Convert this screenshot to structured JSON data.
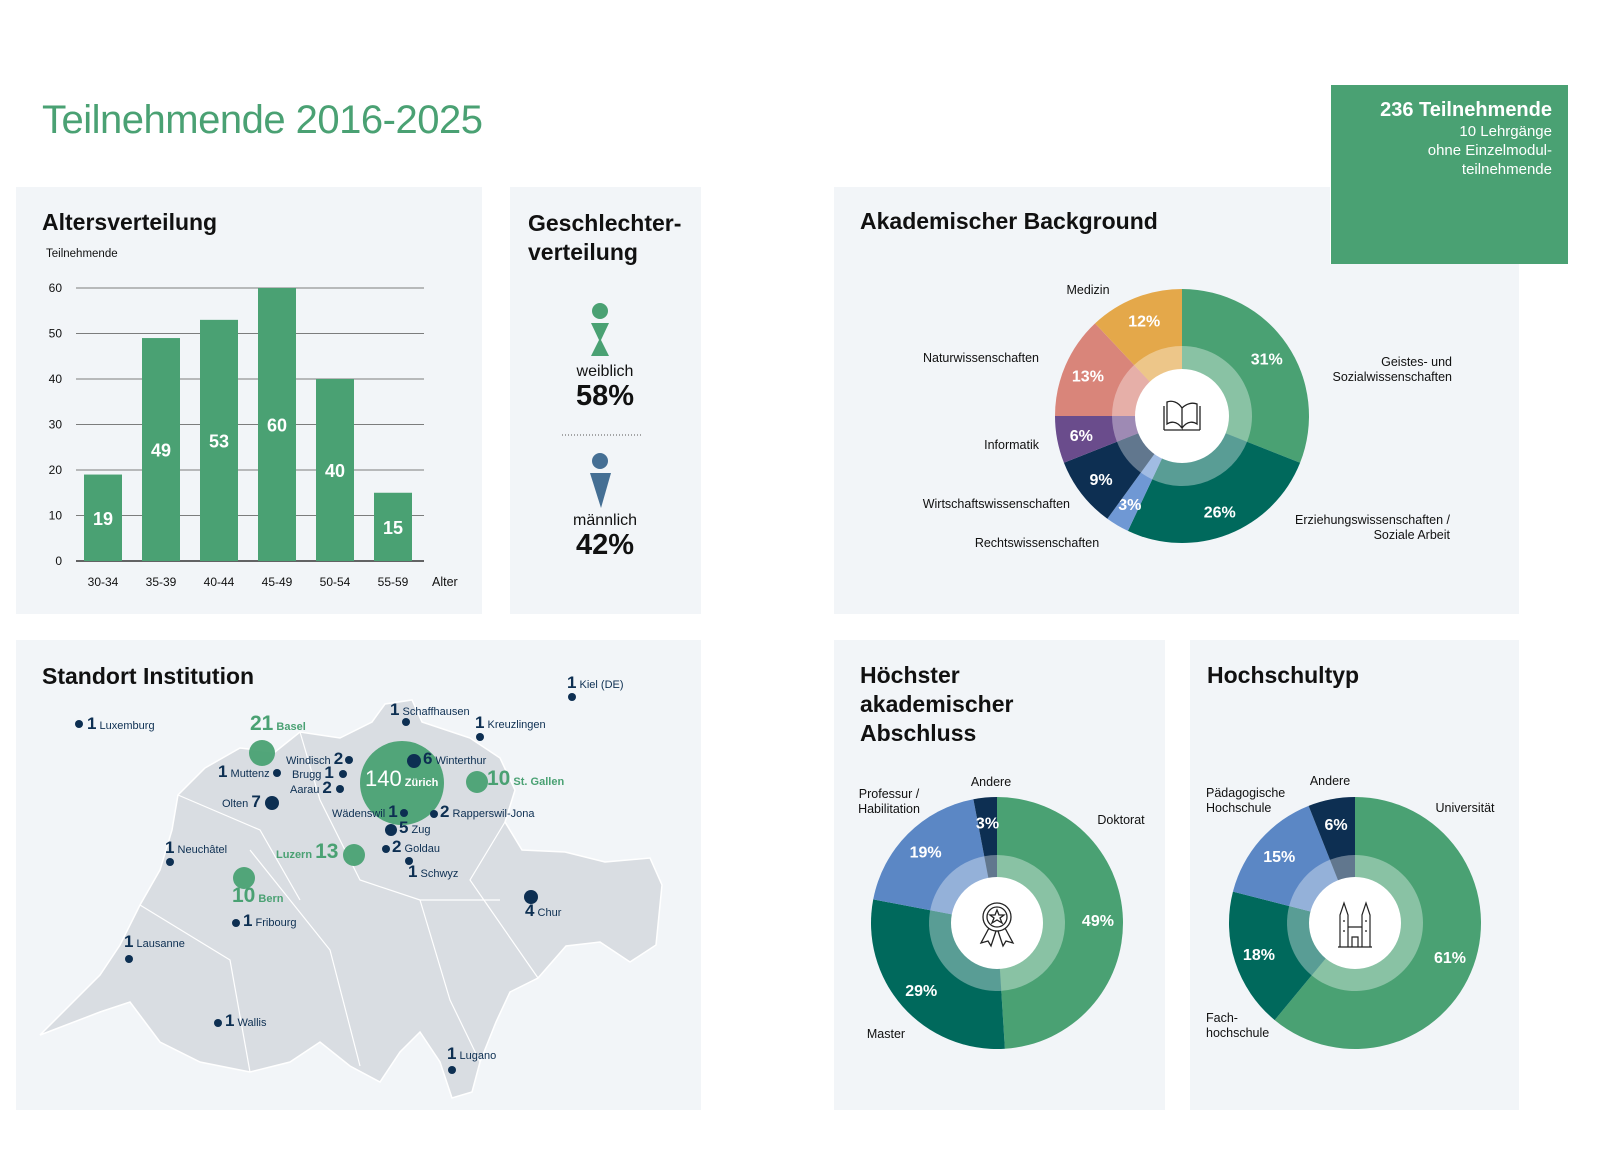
{
  "title": "Teilnehmende 2016-2025",
  "summary": {
    "count": "236 Teilnehmende",
    "line1": "10 Lehrgänge",
    "line2": "ohne Einzelmodul-",
    "line3": "teilnehmende"
  },
  "colors": {
    "green": "#4aa173",
    "teal": "#00695c",
    "navy": "#0d2f52",
    "blue": "#5b87c5",
    "purple": "#6a4c8c",
    "salmon": "#d9857a",
    "yellow": "#e4a84a",
    "male": "#456f94",
    "panel": "#f2f5f8",
    "map": "#d9dde2"
  },
  "chart_data": [
    {
      "type": "bar",
      "title": "Altersverteilung",
      "ylabel": "Teilnehmende",
      "xlabel": "Alter",
      "ylim": [
        0,
        60
      ],
      "yticks": [
        0,
        10,
        20,
        30,
        40,
        50,
        60
      ],
      "grid": true,
      "categories": [
        "30-34",
        "35-39",
        "40-44",
        "45-49",
        "50-54",
        "55-59"
      ],
      "values": [
        19,
        49,
        53,
        60,
        40,
        15
      ]
    },
    {
      "type": "pie",
      "title": "Akademischer Background",
      "center_icon": "book-icon",
      "slices": [
        {
          "label": "Geistes- und Sozialwissenschaften",
          "value": 31,
          "color": "#4aa173"
        },
        {
          "label": "Erziehungswissenschaften / Soziale Arbeit",
          "value": 26,
          "color": "#00695c"
        },
        {
          "label": "Rechtswissenschaften",
          "value": 3,
          "color": "#6f98d4"
        },
        {
          "label": "Wirtschaftswissenschaften",
          "value": 9,
          "color": "#0d2f52"
        },
        {
          "label": "Informatik",
          "value": 6,
          "color": "#6a4c8c"
        },
        {
          "label": "Naturwissenschaften",
          "value": 13,
          "color": "#d9857a"
        },
        {
          "label": "Medizin",
          "value": 12,
          "color": "#e4a84a"
        }
      ]
    },
    {
      "type": "pie",
      "title": "Höchster akademischer Abschluss",
      "center_icon": "award-icon",
      "slices": [
        {
          "label": "Doktorat",
          "value": 49,
          "color": "#4aa173"
        },
        {
          "label": "Master",
          "value": 29,
          "color": "#00695c"
        },
        {
          "label": "Professur / Habilitation",
          "value": 19,
          "color": "#5b87c5"
        },
        {
          "label": "Andere",
          "value": 3,
          "color": "#0d2f52"
        }
      ]
    },
    {
      "type": "pie",
      "title": "Hochschultyp",
      "center_icon": "cathedral-icon",
      "slices": [
        {
          "label": "Universität",
          "value": 61,
          "color": "#4aa173"
        },
        {
          "label": "Fach- hochschule",
          "value": 18,
          "color": "#00695c"
        },
        {
          "label": "Pädagogische Hochschule",
          "value": 15,
          "color": "#5b87c5"
        },
        {
          "label": "Andere",
          "value": 6,
          "color": "#0d2f52"
        }
      ]
    }
  ],
  "gender": {
    "title1": "Geschlechter-",
    "title2": "verteilung",
    "female_label": "weiblich",
    "female_pct": "58%",
    "male_label": "männlich",
    "male_pct": "42%",
    "female_value": 58,
    "male_value": 42
  },
  "map": {
    "title": "Standort Institution",
    "locations": [
      {
        "name": "Kiel (DE)",
        "count": "1"
      },
      {
        "name": "Schaffhausen",
        "count": "1"
      },
      {
        "name": "Luxemburg",
        "count": "1"
      },
      {
        "name": "Kreuzlingen",
        "count": "1"
      },
      {
        "name": "Basel",
        "count": "21"
      },
      {
        "name": "Windisch",
        "count": "2"
      },
      {
        "name": "Muttenz",
        "count": "1"
      },
      {
        "name": "Brugg",
        "count": "1"
      },
      {
        "name": "Aarau",
        "count": "2"
      },
      {
        "name": "Olten",
        "count": "7"
      },
      {
        "name": "Zürich",
        "count": "140"
      },
      {
        "name": "Winterthur",
        "count": "6"
      },
      {
        "name": "St. Gallen",
        "count": "10"
      },
      {
        "name": "Wädenswil",
        "count": "1"
      },
      {
        "name": "Rapperswil-Jona",
        "count": "2"
      },
      {
        "name": "Zug",
        "count": "5"
      },
      {
        "name": "Goldau",
        "count": "2"
      },
      {
        "name": "Luzern",
        "count": "13"
      },
      {
        "name": "Schwyz",
        "count": "1"
      },
      {
        "name": "Neuchâtel",
        "count": "1"
      },
      {
        "name": "Bern",
        "count": "10"
      },
      {
        "name": "Fribourg",
        "count": "1"
      },
      {
        "name": "Chur",
        "count": "4"
      },
      {
        "name": "Lausanne",
        "count": "1"
      },
      {
        "name": "Wallis",
        "count": "1"
      },
      {
        "name": "Lugano",
        "count": "1"
      }
    ]
  }
}
